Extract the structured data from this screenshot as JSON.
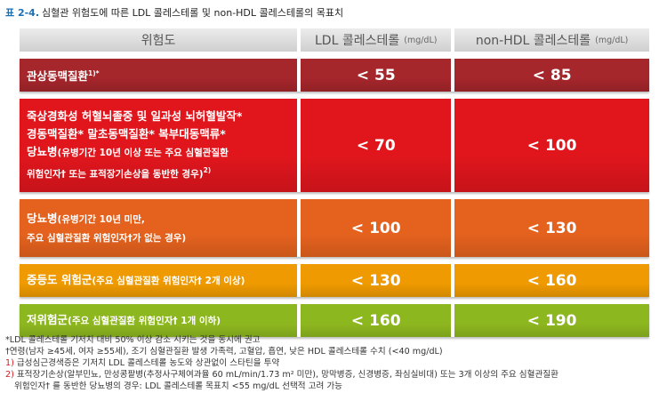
{
  "title": {
    "label": "표 2-4.",
    "text": "심혈관 위험도에 따른 LDL 콜레스테롤 및 non-HDL 콜레스테롤의 목표치"
  },
  "table": {
    "header": [
      {
        "text": "위험도"
      },
      {
        "text": "LDL 콜레스테롤",
        "unit": "(mg/dL)"
      },
      {
        "text": "non-HDL 콜레스테롤",
        "unit": "(mg/dL)"
      }
    ],
    "rows": [
      {
        "color": "#a5262b",
        "risk": [
          {
            "main": "관상동맥질환",
            "sup": "1)*"
          }
        ],
        "ldl": "< 55",
        "nonhdl": "< 85"
      },
      {
        "color": "#e1161d",
        "risk": [
          {
            "main": "죽상경화성 허혈뇌졸중 및 일과성 뇌허혈발작*"
          },
          {
            "main": "경동맥질환*  말초동맥질환*  복부대동맥류*"
          },
          {
            "main": "당뇨병",
            "sub": "(유병기간 10년 이상 또는 주요 심혈관질환"
          },
          {
            "sub": "위험인자† 또는 표적장기손상을 동반한 경우)",
            "sup": "2)"
          }
        ],
        "ldl": "< 70",
        "nonhdl": "< 100"
      },
      {
        "color": "#e5621e",
        "risk": [
          {
            "main": "당뇨병",
            "sub": "(유병기간 10년 미만,"
          },
          {
            "sub": "주요 심혈관질환 위험인자†가 없는 경우)"
          }
        ],
        "ldl": "< 100",
        "nonhdl": "< 130"
      },
      {
        "color": "#ee9a00",
        "risk": [
          {
            "main": "중등도 위험군",
            "sub": "(주요 심혈관질환 위험인자† 2개 이상)"
          }
        ],
        "ldl": "< 130",
        "nonhdl": "< 160"
      },
      {
        "color": "#8db71f",
        "risk": [
          {
            "main": "저위험군",
            "sub": "(주요 심혈관질환 위험인자† 1개 이하)"
          }
        ],
        "ldl": "< 160",
        "nonhdl": "< 190"
      }
    ]
  },
  "footnotes": [
    {
      "marker": "*",
      "lines": [
        "LDL 콜레스테롤 기저치 대비 50% 이상 감소 시키는 것을 동시에 권고"
      ]
    },
    {
      "marker": "†",
      "lines": [
        "연령(남자 ≥45세, 여자 ≥55세), 조기 심혈관질환 발생 가족력, 고혈압, 흡연, 낮은 HDL 콜레스테롤 수치 (<40 mg/dL)"
      ]
    },
    {
      "marker": "1)",
      "color": "#d7191f",
      "lines": [
        "급성심근경색증은 기저치 LDL 콜레스테롤 농도와 상관없이 스타틴을 투약"
      ]
    },
    {
      "marker": "2)",
      "color": "#d7191f",
      "lines": [
        "표적장기손상(알부민뇨, 만성콩팥병(추정사구체여과율 60 mL/min/1.73 m² 미만), 망막병증, 신경병증, 좌심실비대) 또는 3개 이상의 주요 심혈관질환",
        "위험인자† 를 동반한 당뇨병의 경우: LDL 콜레스테롤 목표치 <55 mg/dL 선택적 고려 가능"
      ]
    }
  ]
}
